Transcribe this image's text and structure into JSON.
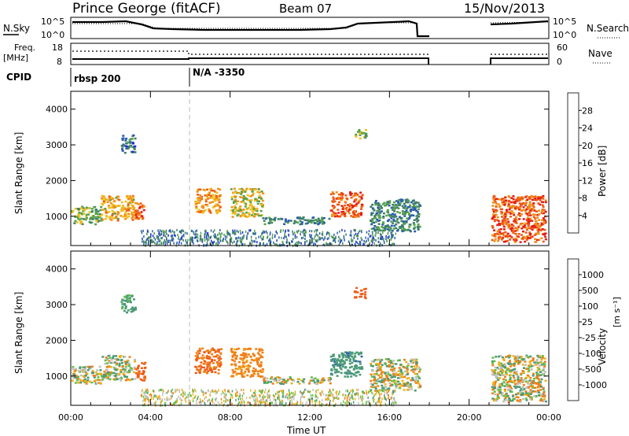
{
  "header": {
    "station": "Prince George (fitACF)",
    "beam": "Beam 07",
    "date": "15/Nov/2013"
  },
  "sky_panel": {
    "left_label": "N.Sky",
    "right_label": "N.Search",
    "left_ticks": [
      "10^5",
      "10^0"
    ],
    "right_ticks": [
      "10^5",
      "10^0"
    ]
  },
  "freq_panel": {
    "left_label_line1": "Freq.",
    "left_label_line2": "[MHz]",
    "left_ticks": [
      "18",
      "8"
    ],
    "right_label": "Nave",
    "right_ticks": [
      "60",
      "0"
    ]
  },
  "cpid_panel": {
    "label": "CPID",
    "segments": [
      {
        "label": "rbsp 200",
        "start_hour": 0
      },
      {
        "label": "N/A -3350",
        "start_hour": 6
      }
    ]
  },
  "time_axis": {
    "label": "Time UT",
    "ticks": [
      "00:00",
      "04:00",
      "08:00",
      "12:00",
      "16:00",
      "20:00",
      "00:00"
    ]
  },
  "range_axis": {
    "label": "Slant Range [km]",
    "ticks": [
      "1000",
      "2000",
      "3000",
      "4000"
    ]
  },
  "power_colorbar": {
    "label": "Power [dB]",
    "ticks": [
      "4",
      "8",
      "12",
      "16",
      "20",
      "24",
      "28"
    ],
    "colors": [
      "#1f2bd6",
      "#2b5bb2",
      "#3f7e6a",
      "#56a24a",
      "#f0c020",
      "#f09018",
      "#f05a14",
      "#e61a14"
    ]
  },
  "velocity_colorbar": {
    "label": "Velocity",
    "units": "[m s⁻¹]",
    "ticks": [
      "1000",
      "500",
      "100",
      "25",
      "-25",
      "-100",
      "-500",
      "-1000"
    ],
    "colors": [
      "#2848c8",
      "#3a66b6",
      "#4a9a76",
      "#64c040",
      "#c0c0bc",
      "#f0b018",
      "#f08018",
      "#f05a14",
      "#e02020"
    ]
  },
  "chart_data": {
    "type": "heatmap",
    "x_range_hours": [
      0,
      24
    ],
    "y_range_km": [
      180,
      4500
    ],
    "scatter_regions": [
      {
        "t0": 0.0,
        "t1": 1.5,
        "r0": 800,
        "r1": 1300,
        "power": 14,
        "velocity": 0
      },
      {
        "t0": 1.5,
        "t1": 3.2,
        "r0": 900,
        "r1": 1600,
        "power": 20,
        "velocity": 0
      },
      {
        "t0": 3.2,
        "t1": 3.7,
        "r0": 900,
        "r1": 1400,
        "power": 26,
        "velocity": -400
      },
      {
        "t0": 2.5,
        "t1": 3.2,
        "r0": 2800,
        "r1": 3300,
        "power": 8,
        "velocity": 150
      },
      {
        "t0": 6.2,
        "t1": 7.5,
        "r0": 1100,
        "r1": 1800,
        "power": 22,
        "velocity": -300
      },
      {
        "t0": 8.0,
        "t1": 9.6,
        "r0": 1000,
        "r1": 1800,
        "power": 18,
        "velocity": -150
      },
      {
        "t0": 9.6,
        "t1": 13.0,
        "r0": 800,
        "r1": 1000,
        "power": 10,
        "velocity": 0
      },
      {
        "t0": 13.0,
        "t1": 14.6,
        "r0": 1000,
        "r1": 1700,
        "power": 26,
        "velocity": 200
      },
      {
        "t0": 14.2,
        "t1": 14.8,
        "r0": 3200,
        "r1": 3500,
        "power": 16,
        "velocity": -500
      },
      {
        "t0": 15.0,
        "t1": 17.5,
        "r0": 600,
        "r1": 1500,
        "power": 10,
        "velocity": 0
      },
      {
        "t0": 21.1,
        "t1": 23.8,
        "r0": 300,
        "r1": 1600,
        "power": 26,
        "velocity": 0
      }
    ]
  }
}
